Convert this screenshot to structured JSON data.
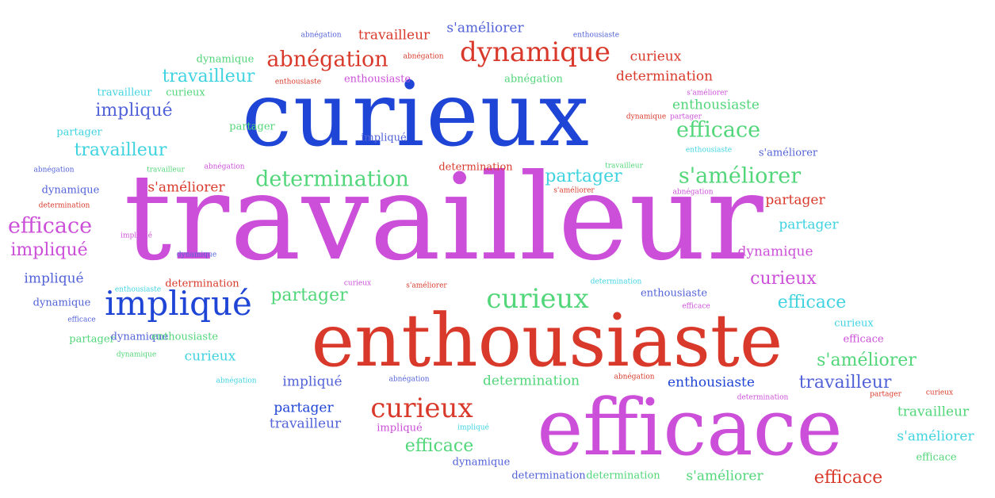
{
  "colors": {
    "blue": "#1f45d6",
    "magenta": "#cc4fd9",
    "red": "#d9392b",
    "green": "#52d67a",
    "cyan": "#3fd3e0",
    "purple": "#5262d8"
  },
  "words": [
    {
      "text": "curieux",
      "color": "#1f45d6"
    },
    {
      "text": "travailleur",
      "color": "#cc4fd9"
    },
    {
      "text": "enthousiaste",
      "color": "#d9392b"
    },
    {
      "text": "efficace",
      "color": "#cc4fd9"
    },
    {
      "text": "abnégation",
      "color": "#5262d8"
    },
    {
      "text": "travailleur",
      "color": "#d9392b"
    },
    {
      "text": "s'améliorer",
      "color": "#5262d8"
    },
    {
      "text": "enthousiaste",
      "color": "#5262d8"
    },
    {
      "text": "dynamique",
      "color": "#52d67a"
    },
    {
      "text": "abnégation",
      "color": "#d9392b"
    },
    {
      "text": "abnégation",
      "color": "#d9392b"
    },
    {
      "text": "dynamique",
      "color": "#d9392b"
    },
    {
      "text": "curieux",
      "color": "#d9392b"
    },
    {
      "text": "travailleur",
      "color": "#3fd3e0"
    },
    {
      "text": "enthousiaste",
      "color": "#d9392b"
    },
    {
      "text": "enthousiaste",
      "color": "#cc4fd9"
    },
    {
      "text": "abnégation",
      "color": "#52d67a"
    },
    {
      "text": "determination",
      "color": "#d9392b"
    },
    {
      "text": "travailleur",
      "color": "#3fd3e0"
    },
    {
      "text": "curieux",
      "color": "#52d67a"
    },
    {
      "text": "s'améliorer",
      "color": "#cc4fd9"
    },
    {
      "text": "impliqué",
      "color": "#5262d8"
    },
    {
      "text": "enthousiaste",
      "color": "#52d67a"
    },
    {
      "text": "dynamique",
      "color": "#d9392b"
    },
    {
      "text": "partager",
      "color": "#cc4fd9"
    },
    {
      "text": "partager",
      "color": "#3fd3e0"
    },
    {
      "text": "partager",
      "color": "#52d67a"
    },
    {
      "text": "impliqué",
      "color": "#5262d8"
    },
    {
      "text": "efficace",
      "color": "#52d67a"
    },
    {
      "text": "travailleur",
      "color": "#3fd3e0"
    },
    {
      "text": "enthousiaste",
      "color": "#3fd3e0"
    },
    {
      "text": "s'améliorer",
      "color": "#5262d8"
    },
    {
      "text": "abnégation",
      "color": "#5262d8"
    },
    {
      "text": "travailleur",
      "color": "#52d67a"
    },
    {
      "text": "abnégation",
      "color": "#cc4fd9"
    },
    {
      "text": "determination",
      "color": "#d9392b"
    },
    {
      "text": "travailleur",
      "color": "#52d67a"
    },
    {
      "text": "determination",
      "color": "#52d67a"
    },
    {
      "text": "partager",
      "color": "#3fd3e0"
    },
    {
      "text": "s'améliorer",
      "color": "#52d67a"
    },
    {
      "text": "dynamique",
      "color": "#5262d8"
    },
    {
      "text": "s'améliorer",
      "color": "#d9392b"
    },
    {
      "text": "s'améliorer",
      "color": "#d9392b"
    },
    {
      "text": "abnégation",
      "color": "#cc4fd9"
    },
    {
      "text": "determination",
      "color": "#d9392b"
    },
    {
      "text": "partager",
      "color": "#d9392b"
    },
    {
      "text": "efficace",
      "color": "#cc4fd9"
    },
    {
      "text": "impliqué",
      "color": "#cc4fd9"
    },
    {
      "text": "partager",
      "color": "#3fd3e0"
    },
    {
      "text": "dynamique",
      "color": "#5262d8"
    },
    {
      "text": "dynamique",
      "color": "#cc4fd9"
    },
    {
      "text": "impliqué",
      "color": "#cc4fd9"
    },
    {
      "text": "curieux",
      "color": "#cc4fd9"
    },
    {
      "text": "impliqué",
      "color": "#5262d8"
    },
    {
      "text": "enthousiaste",
      "color": "#3fd3e0"
    },
    {
      "text": "determination",
      "color": "#d9392b"
    },
    {
      "text": "curieux",
      "color": "#cc4fd9"
    },
    {
      "text": "s'améliorer",
      "color": "#d9392b"
    },
    {
      "text": "determination",
      "color": "#3fd3e0"
    },
    {
      "text": "enthousiaste",
      "color": "#5262d8"
    },
    {
      "text": "partager",
      "color": "#52d67a"
    },
    {
      "text": "efficace",
      "color": "#cc4fd9"
    },
    {
      "text": "impliqué",
      "color": "#1f45d6"
    },
    {
      "text": "curieux",
      "color": "#52d67a"
    },
    {
      "text": "efficace",
      "color": "#3fd3e0"
    },
    {
      "text": "dynamique",
      "color": "#5262d8"
    },
    {
      "text": "efficace",
      "color": "#5262d8"
    },
    {
      "text": "curieux",
      "color": "#3fd3e0"
    },
    {
      "text": "partager",
      "color": "#52d67a"
    },
    {
      "text": "dynamique",
      "color": "#5262d8"
    },
    {
      "text": "enthousiaste",
      "color": "#52d67a"
    },
    {
      "text": "efficace",
      "color": "#cc4fd9"
    },
    {
      "text": "dynamique",
      "color": "#52d67a"
    },
    {
      "text": "curieux",
      "color": "#3fd3e0"
    },
    {
      "text": "s'améliorer",
      "color": "#52d67a"
    },
    {
      "text": "abnégation",
      "color": "#3fd3e0"
    },
    {
      "text": "impliqué",
      "color": "#5262d8"
    },
    {
      "text": "abnégation",
      "color": "#5262d8"
    },
    {
      "text": "determination",
      "color": "#52d67a"
    },
    {
      "text": "abnégation",
      "color": "#d9392b"
    },
    {
      "text": "enthousiaste",
      "color": "#1f45d6"
    },
    {
      "text": "travailleur",
      "color": "#5262d8"
    },
    {
      "text": "determination",
      "color": "#cc4fd9"
    },
    {
      "text": "partager",
      "color": "#d9392b"
    },
    {
      "text": "curieux",
      "color": "#d9392b"
    },
    {
      "text": "partager",
      "color": "#1f45d6"
    },
    {
      "text": "curieux",
      "color": "#d9392b"
    },
    {
      "text": "travailleur",
      "color": "#5262d8"
    },
    {
      "text": "impliqué",
      "color": "#cc4fd9"
    },
    {
      "text": "impliqué",
      "color": "#3fd3e0"
    },
    {
      "text": "travailleur",
      "color": "#52d67a"
    },
    {
      "text": "efficace",
      "color": "#52d67a"
    },
    {
      "text": "s'améliorer",
      "color": "#3fd3e0"
    },
    {
      "text": "dynamique",
      "color": "#5262d8"
    },
    {
      "text": "efficace",
      "color": "#52d67a"
    },
    {
      "text": "determination",
      "color": "#5262d8"
    },
    {
      "text": "determination",
      "color": "#52d67a"
    },
    {
      "text": "s'améliorer",
      "color": "#52d67a"
    },
    {
      "text": "efficace",
      "color": "#d9392b"
    }
  ]
}
